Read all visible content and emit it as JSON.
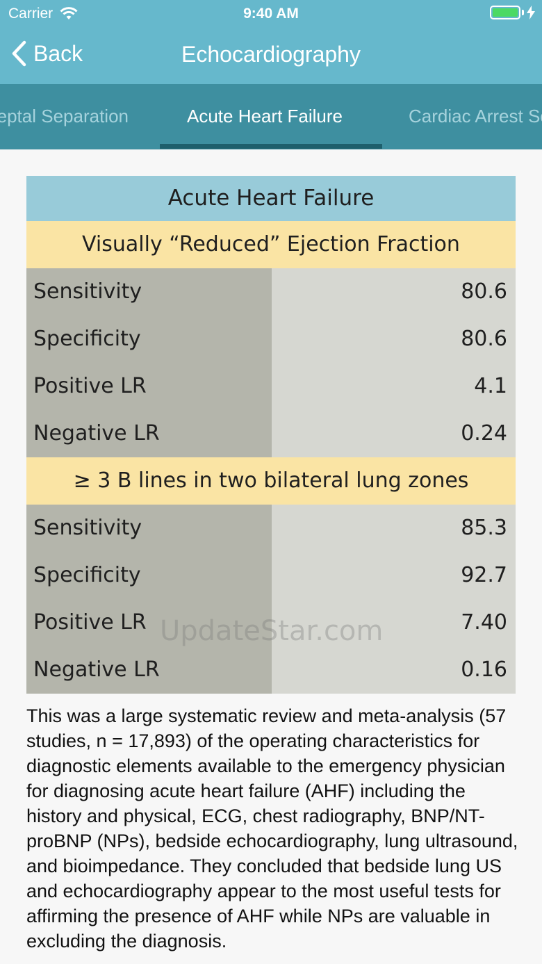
{
  "status_bar": {
    "carrier": "Carrier",
    "time": "9:40 AM",
    "battery_color": "#4cd964"
  },
  "nav": {
    "back_label": "Back",
    "title": "Echocardiography"
  },
  "tabs": [
    {
      "label": "Mitral E-Point Septal Separation",
      "active": false
    },
    {
      "label": "Acute Heart Failure",
      "active": true
    },
    {
      "label": "Cardiac Arrest Sonography",
      "active": false
    }
  ],
  "table": {
    "title": "Acute Heart Failure",
    "sections": [
      {
        "header": "Visually “Reduced” Ejection Fraction",
        "rows": [
          {
            "label": "Sensitivity",
            "value": "80.6"
          },
          {
            "label": "Specificity",
            "value": "80.6"
          },
          {
            "label": "Positive LR",
            "value": "4.1"
          },
          {
            "label": "Negative LR",
            "value": "0.24"
          }
        ]
      },
      {
        "header": "≥ 3 B lines in two bilateral lung zones",
        "rows": [
          {
            "label": "Sensitivity",
            "value": "85.3"
          },
          {
            "label": "Specificity",
            "value": "92.7"
          },
          {
            "label": "Positive LR",
            "value": "7.40"
          },
          {
            "label": "Negative LR",
            "value": "0.16"
          }
        ]
      }
    ]
  },
  "watermark": "UpdateStar.com",
  "body_text": "This was a large systematic review and meta-analysis (57 studies, n = 17,893) of the operating characteristics for diagnostic elements available to the emergency physician for diagnosing acute heart failure (AHF) including the history and physical, ECG, chest radiography, BNP/NT-proBNP (NPs), bedside echocardiography, lung ultrasound, and bioimpedance. They concluded that bedside lung US and echocardiography appear to the most useful tests for affirming the presence of AHF while NPs are valuable in excluding the diagnosis."
}
